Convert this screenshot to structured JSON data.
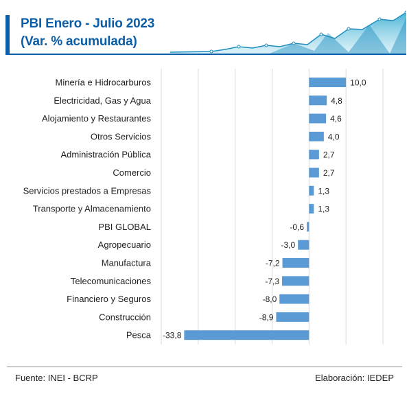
{
  "header": {
    "title": "PBI Enero - Julio 2023",
    "subtitle": "(Var. % acumulada)"
  },
  "footer": {
    "source": "Fuente: INEI - BCRP",
    "credit": "Elaboración: IEDEP"
  },
  "colors": {
    "title": "#0b5ea8",
    "bar": "#5b9bd5",
    "decoration": "#2aa7cf"
  },
  "chart_data": {
    "type": "bar",
    "orientation": "horizontal",
    "categories": [
      "Minería e Hidrocarburos",
      "Electricidad, Gas y Agua",
      "Alojamiento y Restaurantes",
      "Otros Servicios",
      "Administración Pública",
      "Comercio",
      "Servicios prestados a Empresas",
      "Transporte y Almacenamiento",
      "PBI GLOBAL",
      "Agropecuario",
      "Manufactura",
      "Telecomunicaciones",
      "Financiero y Seguros",
      "Construcción",
      "Pesca"
    ],
    "values": [
      10.0,
      4.8,
      4.6,
      4.0,
      2.7,
      2.7,
      1.3,
      1.3,
      -0.6,
      -3.0,
      -7.2,
      -7.3,
      -8.0,
      -8.9,
      -33.8
    ],
    "value_labels": [
      "10,0",
      "4,8",
      "4,6",
      "4,0",
      "2,7",
      "2,7",
      "1,3",
      "1,3",
      "-0,6",
      "-3,0",
      "-7,2",
      "-7,3",
      "-8,0",
      "-8,9",
      "-33,8"
    ],
    "xlim": [
      -40,
      20
    ],
    "grid": true,
    "legend": "none"
  }
}
